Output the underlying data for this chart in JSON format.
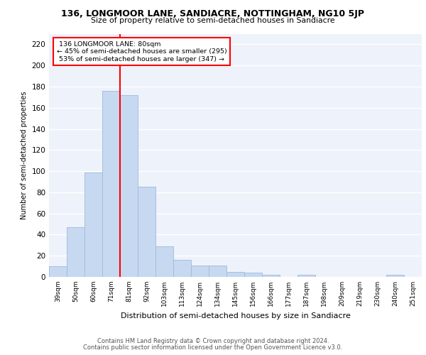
{
  "title1": "136, LONGMOOR LANE, SANDIACRE, NOTTINGHAM, NG10 5JP",
  "title2": "Size of property relative to semi-detached houses in Sandiacre",
  "xlabel": "Distribution of semi-detached houses by size in Sandiacre",
  "ylabel": "Number of semi-detached properties",
  "categories": [
    "39sqm",
    "50sqm",
    "60sqm",
    "71sqm",
    "81sqm",
    "92sqm",
    "103sqm",
    "113sqm",
    "124sqm",
    "134sqm",
    "145sqm",
    "156sqm",
    "166sqm",
    "177sqm",
    "187sqm",
    "198sqm",
    "209sqm",
    "219sqm",
    "230sqm",
    "240sqm",
    "251sqm"
  ],
  "values": [
    10,
    47,
    99,
    176,
    172,
    85,
    29,
    16,
    11,
    11,
    5,
    4,
    2,
    0,
    2,
    0,
    0,
    0,
    0,
    2,
    0
  ],
  "bar_color": "#c6d9f1",
  "bar_edge_color": "#a0b8d8",
  "property_label": "136 LONGMOOR LANE: 80sqm",
  "smaller_pct": 45,
  "smaller_count": 295,
  "larger_pct": 53,
  "larger_count": 347,
  "vline_color": "red",
  "ylim": [
    0,
    230
  ],
  "yticks": [
    0,
    20,
    40,
    60,
    80,
    100,
    120,
    140,
    160,
    180,
    200,
    220
  ],
  "footer1": "Contains HM Land Registry data © Crown copyright and database right 2024.",
  "footer2": "Contains public sector information licensed under the Open Government Licence v3.0.",
  "bg_color": "#eef2fb",
  "grid_color": "#ffffff"
}
